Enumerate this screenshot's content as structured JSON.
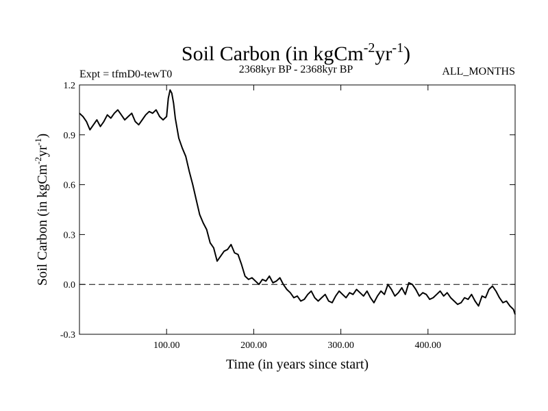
{
  "chart_data": {
    "type": "line",
    "title_main": "Soil Carbon (in kgCm",
    "title_sup1": "-2",
    "title_mid": "yr",
    "title_sup2": "-1",
    "title_end": ")",
    "experiment_label": "Expt = tfmD0-tewT0",
    "period_label": "2368kyr BP - 2368kyr BP",
    "months_label": "ALL_MONTHS",
    "xlabel": "Time (in years since start)",
    "ylabel_main": "Soil Carbon (in kgCm",
    "ylabel_sup1": "-2",
    "ylabel_mid": "yr",
    "ylabel_sup2": "-1",
    "ylabel_end": ")",
    "xlim": [
      0,
      500
    ],
    "ylim": [
      -0.3,
      1.2
    ],
    "x_ticks": [
      100,
      200,
      300,
      400
    ],
    "x_tick_labels": [
      "100.00",
      "200.00",
      "300.00",
      "400.00"
    ],
    "y_ticks": [
      -0.3,
      0.0,
      0.3,
      0.6,
      0.9,
      1.2
    ],
    "y_tick_labels": [
      "-0.3",
      "0.0",
      "0.3",
      "0.6",
      "0.9",
      "1.2"
    ],
    "reference_line_y": 0.0,
    "series": [
      {
        "name": "Soil Carbon",
        "x": [
          0,
          4,
          8,
          12,
          16,
          20,
          24,
          28,
          32,
          36,
          40,
          44,
          48,
          52,
          56,
          60,
          64,
          68,
          72,
          76,
          80,
          84,
          88,
          92,
          96,
          100,
          102,
          104,
          106,
          108,
          110,
          114,
          118,
          122,
          126,
          130,
          134,
          138,
          142,
          146,
          150,
          154,
          158,
          162,
          166,
          170,
          174,
          178,
          182,
          186,
          190,
          194,
          198,
          202,
          206,
          210,
          214,
          218,
          222,
          226,
          230,
          234,
          238,
          242,
          246,
          250,
          254,
          258,
          262,
          266,
          270,
          274,
          278,
          282,
          286,
          290,
          294,
          298,
          302,
          306,
          310,
          314,
          318,
          322,
          326,
          330,
          334,
          338,
          342,
          346,
          350,
          354,
          358,
          362,
          366,
          370,
          374,
          378,
          382,
          386,
          390,
          394,
          398,
          402,
          406,
          410,
          414,
          418,
          422,
          426,
          430,
          434,
          438,
          442,
          446,
          450,
          454,
          458,
          462,
          466,
          470,
          474,
          478,
          482,
          486,
          490,
          494,
          498,
          500
        ],
        "y": [
          1.03,
          1.01,
          0.98,
          0.93,
          0.96,
          0.99,
          0.95,
          0.98,
          1.02,
          1.0,
          1.03,
          1.05,
          1.02,
          0.99,
          1.01,
          1.03,
          0.98,
          0.96,
          0.99,
          1.02,
          1.04,
          1.03,
          1.05,
          1.01,
          0.99,
          1.01,
          1.12,
          1.17,
          1.15,
          1.09,
          1.0,
          0.88,
          0.82,
          0.77,
          0.68,
          0.6,
          0.51,
          0.42,
          0.37,
          0.33,
          0.25,
          0.22,
          0.14,
          0.17,
          0.2,
          0.21,
          0.24,
          0.19,
          0.18,
          0.12,
          0.05,
          0.03,
          0.04,
          0.02,
          0.0,
          0.03,
          0.02,
          0.05,
          0.01,
          0.02,
          0.04,
          0.0,
          -0.03,
          -0.05,
          -0.08,
          -0.07,
          -0.1,
          -0.09,
          -0.06,
          -0.04,
          -0.08,
          -0.1,
          -0.08,
          -0.06,
          -0.1,
          -0.11,
          -0.07,
          -0.04,
          -0.06,
          -0.08,
          -0.05,
          -0.06,
          -0.03,
          -0.05,
          -0.07,
          -0.04,
          -0.08,
          -0.11,
          -0.07,
          -0.04,
          -0.06,
          0.0,
          -0.03,
          -0.07,
          -0.05,
          -0.02,
          -0.06,
          0.01,
          0.0,
          -0.03,
          -0.07,
          -0.05,
          -0.06,
          -0.09,
          -0.08,
          -0.06,
          -0.04,
          -0.07,
          -0.05,
          -0.08,
          -0.1,
          -0.12,
          -0.11,
          -0.08,
          -0.09,
          -0.06,
          -0.1,
          -0.13,
          -0.07,
          -0.08,
          -0.03,
          -0.01,
          -0.04,
          -0.08,
          -0.11,
          -0.1,
          -0.13,
          -0.15,
          -0.18
        ]
      }
    ]
  }
}
